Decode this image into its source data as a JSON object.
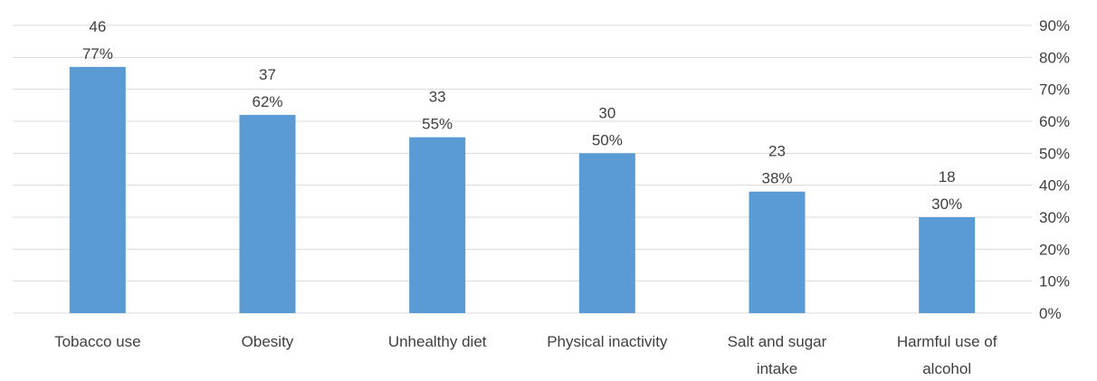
{
  "chart_data": {
    "type": "bar",
    "categories": [
      [
        "Tobacco use"
      ],
      [
        "Obesity"
      ],
      [
        "Unhealthy diet"
      ],
      [
        "Physical inactivity"
      ],
      [
        "Salt and sugar",
        "intake"
      ],
      [
        "Harmful use of",
        "alcohol"
      ]
    ],
    "counts": [
      46,
      37,
      33,
      30,
      23,
      18
    ],
    "percent_labels": [
      "77%",
      "62%",
      "55%",
      "50%",
      "38%",
      "30%"
    ],
    "values": [
      0.77,
      0.62,
      0.55,
      0.5,
      0.38,
      0.3
    ],
    "y_ticks": [
      "0%",
      "10%",
      "20%",
      "30%",
      "40%",
      "50%",
      "60%",
      "70%",
      "80%",
      "90%"
    ],
    "ylim": [
      0,
      0.9
    ],
    "y_axis_side": "right",
    "grid": true,
    "bar_color": "#5B9BD5",
    "grid_color": "#D9D9D9",
    "text_color": "#404040"
  }
}
